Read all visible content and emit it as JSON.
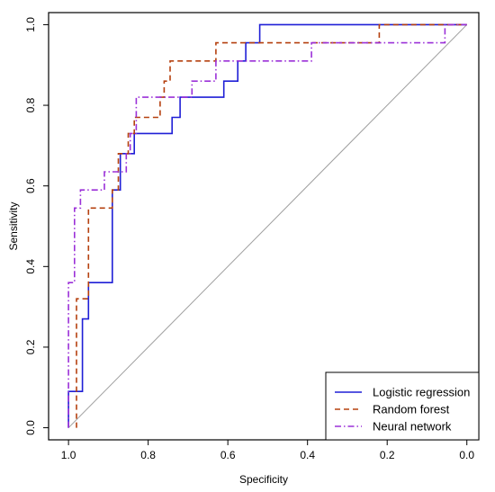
{
  "chart_data": {
    "type": "line",
    "xlabel": "Specificity",
    "ylabel": "Sensitivity",
    "xlim": [
      1.05,
      -0.03
    ],
    "ylim": [
      -0.03,
      1.03
    ],
    "x_ticks": [
      {
        "value": 1.0,
        "label": "1.0"
      },
      {
        "value": 0.8,
        "label": "0.8"
      },
      {
        "value": 0.6,
        "label": "0.6"
      },
      {
        "value": 0.4,
        "label": "0.4"
      },
      {
        "value": 0.2,
        "label": "0.2"
      },
      {
        "value": 0.0,
        "label": "0.0"
      }
    ],
    "y_ticks": [
      {
        "value": 0.0,
        "label": "0.0"
      },
      {
        "value": 0.2,
        "label": "0.2"
      },
      {
        "value": 0.4,
        "label": "0.4"
      },
      {
        "value": 0.6,
        "label": "0.6"
      },
      {
        "value": 0.8,
        "label": "0.8"
      },
      {
        "value": 1.0,
        "label": "1.0"
      }
    ],
    "reference_line": {
      "from": [
        1.0,
        0.0
      ],
      "to": [
        0.0,
        1.0
      ],
      "color": "#9e9e9e"
    },
    "legend_position": "bottom-right",
    "series": [
      {
        "name": "Logistic regression",
        "color": "#1f1fd6",
        "dash": "solid",
        "points": [
          [
            1.0,
            0.0
          ],
          [
            1.0,
            0.09
          ],
          [
            0.965,
            0.09
          ],
          [
            0.965,
            0.27
          ],
          [
            0.95,
            0.27
          ],
          [
            0.95,
            0.36
          ],
          [
            0.89,
            0.36
          ],
          [
            0.89,
            0.59
          ],
          [
            0.87,
            0.59
          ],
          [
            0.87,
            0.68
          ],
          [
            0.835,
            0.68
          ],
          [
            0.835,
            0.73
          ],
          [
            0.74,
            0.73
          ],
          [
            0.74,
            0.77
          ],
          [
            0.72,
            0.77
          ],
          [
            0.72,
            0.82
          ],
          [
            0.61,
            0.82
          ],
          [
            0.61,
            0.86
          ],
          [
            0.575,
            0.86
          ],
          [
            0.575,
            0.91
          ],
          [
            0.555,
            0.91
          ],
          [
            0.555,
            0.955
          ],
          [
            0.52,
            0.955
          ],
          [
            0.52,
            1.0
          ],
          [
            0.0,
            1.0
          ]
        ]
      },
      {
        "name": "Random forest",
        "color": "#b5400f",
        "dash": "dashed",
        "points": [
          [
            0.98,
            0.0
          ],
          [
            0.98,
            0.32
          ],
          [
            0.95,
            0.32
          ],
          [
            0.95,
            0.545
          ],
          [
            0.89,
            0.545
          ],
          [
            0.89,
            0.59
          ],
          [
            0.875,
            0.59
          ],
          [
            0.875,
            0.68
          ],
          [
            0.85,
            0.68
          ],
          [
            0.85,
            0.73
          ],
          [
            0.835,
            0.73
          ],
          [
            0.835,
            0.77
          ],
          [
            0.77,
            0.77
          ],
          [
            0.77,
            0.82
          ],
          [
            0.76,
            0.82
          ],
          [
            0.76,
            0.86
          ],
          [
            0.745,
            0.86
          ],
          [
            0.745,
            0.91
          ],
          [
            0.63,
            0.91
          ],
          [
            0.63,
            0.955
          ],
          [
            0.39,
            0.955
          ],
          [
            0.39,
            0.955
          ],
          [
            0.22,
            0.955
          ],
          [
            0.22,
            1.0
          ],
          [
            0.0,
            1.0
          ]
        ]
      },
      {
        "name": "Neural network",
        "color": "#9b30d8",
        "dash": "dashdot",
        "points": [
          [
            1.0,
            0.0
          ],
          [
            1.0,
            0.36
          ],
          [
            0.985,
            0.36
          ],
          [
            0.985,
            0.545
          ],
          [
            0.97,
            0.545
          ],
          [
            0.97,
            0.59
          ],
          [
            0.91,
            0.59
          ],
          [
            0.91,
            0.635
          ],
          [
            0.855,
            0.635
          ],
          [
            0.855,
            0.68
          ],
          [
            0.845,
            0.68
          ],
          [
            0.845,
            0.73
          ],
          [
            0.83,
            0.73
          ],
          [
            0.83,
            0.82
          ],
          [
            0.73,
            0.82
          ],
          [
            0.73,
            0.82
          ],
          [
            0.69,
            0.82
          ],
          [
            0.69,
            0.86
          ],
          [
            0.63,
            0.86
          ],
          [
            0.63,
            0.91
          ],
          [
            0.39,
            0.91
          ],
          [
            0.39,
            0.955
          ],
          [
            0.055,
            0.955
          ],
          [
            0.055,
            1.0
          ],
          [
            0.0,
            1.0
          ]
        ]
      }
    ]
  }
}
